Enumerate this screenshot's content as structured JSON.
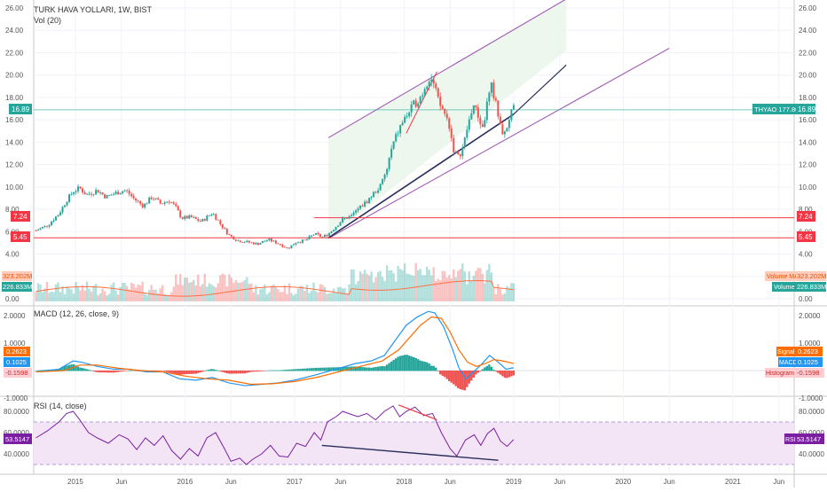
{
  "header": {
    "symbol_title": "TURK HAVA YOLLARI, 1W, BIST",
    "vol_label": "Vol (20)",
    "macd_label": "MACD (12, 26, close, 9)",
    "rsi_label": "RSI (14, close)"
  },
  "colors": {
    "up": "#26a69a",
    "down": "#ef5350",
    "channel": "#9c4fb0",
    "trendline": "#2a2e5c",
    "hline": "#f23645",
    "macd": "#2196f3",
    "signal": "#ff6d00",
    "rsi": "#7b1fa2",
    "price_line": "#26a69a"
  },
  "badges": {
    "price_left": "16.89",
    "price_right_name": "THYAO 177.80%",
    "price_right_value": "16.89",
    "h1_left": "7.24",
    "h1_right": "7.24",
    "h2_left": "5.45",
    "h2_right": "5.45",
    "vol_ma_left": "323.202M",
    "vol_ma_name": "Volume MA",
    "vol_ma_value": "323.202M",
    "vol_left": "226.833M",
    "vol_name": "Volume",
    "vol_value": "226.833M",
    "signal_left": "0.2623",
    "signal_name": "Signal",
    "signal_value": "0.2623",
    "macd_left": "0.1025",
    "macd_name": "MACD",
    "macd_value": "0.1025",
    "hist_left": "-0.1598",
    "hist_name": "Histogram",
    "hist_value": "-0.1598",
    "rsi_left": "53.5147",
    "rsi_name": "RSI",
    "rsi_value": "53.5147"
  },
  "chart_data": [
    {
      "type": "candlestick",
      "title": "TURK HAVA YOLLARI, 1W, BIST",
      "ylim": [
        0,
        27
      ],
      "y_ticks": [
        "26.00",
        "24.00",
        "22.00",
        "20.00",
        "18.00",
        "16.00",
        "14.00",
        "12.00",
        "10.00",
        "8.00",
        "6.00",
        "4.00",
        "2.00",
        "0.00"
      ],
      "x_ticks": [
        "2015",
        "Jun",
        "2016",
        "Jun",
        "2017",
        "Jun",
        "2018",
        "Jun",
        "2019",
        "Jun",
        "2020",
        "Jun",
        "2021",
        "Jun"
      ],
      "x_tick_dates": [
        2015.0,
        2015.42,
        2016.0,
        2016.42,
        2017.0,
        2017.42,
        2018.0,
        2018.42,
        2019.0,
        2019.42,
        2020.0,
        2020.42,
        2021.0,
        2021.42
      ],
      "x_range": [
        2014.62,
        2021.56
      ],
      "close_path": [
        [
          2014.64,
          6.1
        ],
        [
          2014.75,
          6.6
        ],
        [
          2014.85,
          7.6
        ],
        [
          2014.92,
          8.8
        ],
        [
          2014.98,
          9.6
        ],
        [
          2015.04,
          9.9
        ],
        [
          2015.1,
          9.3
        ],
        [
          2015.2,
          9.7
        ],
        [
          2015.28,
          9.1
        ],
        [
          2015.38,
          9.5
        ],
        [
          2015.46,
          9.7
        ],
        [
          2015.54,
          8.9
        ],
        [
          2015.62,
          8.3
        ],
        [
          2015.7,
          9.1
        ],
        [
          2015.78,
          8.5
        ],
        [
          2015.86,
          8.8
        ],
        [
          2015.92,
          8.1
        ],
        [
          2015.97,
          7.2
        ],
        [
          2016.05,
          7.3
        ],
        [
          2016.15,
          6.9
        ],
        [
          2016.25,
          7.7
        ],
        [
          2016.33,
          6.6
        ],
        [
          2016.4,
          5.7
        ],
        [
          2016.48,
          5.2
        ],
        [
          2016.56,
          5.1
        ],
        [
          2016.66,
          4.9
        ],
        [
          2016.76,
          5.3
        ],
        [
          2016.86,
          4.9
        ],
        [
          2016.94,
          4.5
        ],
        [
          2017.02,
          5.1
        ],
        [
          2017.1,
          5.2
        ],
        [
          2017.18,
          5.8
        ],
        [
          2017.26,
          5.5
        ],
        [
          2017.32,
          5.9
        ],
        [
          2017.38,
          6.5
        ],
        [
          2017.44,
          7.1
        ],
        [
          2017.52,
          7.4
        ],
        [
          2017.6,
          8.2
        ],
        [
          2017.66,
          8.7
        ],
        [
          2017.72,
          9.4
        ],
        [
          2017.78,
          10.0
        ],
        [
          2017.84,
          11.4
        ],
        [
          2017.88,
          13.2
        ],
        [
          2017.93,
          14.6
        ],
        [
          2017.98,
          15.7
        ],
        [
          2018.04,
          16.6
        ],
        [
          2018.1,
          17.5
        ],
        [
          2018.16,
          18.2
        ],
        [
          2018.2,
          19.3
        ],
        [
          2018.24,
          19.9
        ],
        [
          2018.28,
          18.8
        ],
        [
          2018.32,
          17.4
        ],
        [
          2018.36,
          16.8
        ],
        [
          2018.41,
          15.6
        ],
        [
          2018.45,
          13.4
        ],
        [
          2018.49,
          12.6
        ],
        [
          2018.54,
          13.6
        ],
        [
          2018.58,
          15.4
        ],
        [
          2018.63,
          17.4
        ],
        [
          2018.68,
          16.2
        ],
        [
          2018.72,
          15.2
        ],
        [
          2018.76,
          17.6
        ],
        [
          2018.8,
          19.0
        ],
        [
          2018.84,
          17.3
        ],
        [
          2018.88,
          15.2
        ],
        [
          2018.92,
          14.7
        ],
        [
          2018.96,
          16.2
        ],
        [
          2019.0,
          16.9
        ]
      ],
      "channel": {
        "upper": [
          [
            2017.31,
            14.4
          ],
          [
            2019.48,
            26.8
          ]
        ],
        "lower": [
          [
            2017.31,
            5.4
          ],
          [
            2020.42,
            18.9
          ]
        ],
        "upper2": [
          [
            2019.48,
            26.8
          ],
          [
            2020.42,
            22.4
          ]
        ]
      },
      "trendline": [
        [
          2017.31,
          5.45
        ],
        [
          2019.0,
          16.5
        ]
      ],
      "top_line": [
        [
          2018.02,
          14.8
        ],
        [
          2018.3,
          20.3
        ]
      ],
      "horizontal_lines": [
        7.24,
        5.45
      ],
      "last_price": 16.89
    },
    {
      "type": "bar",
      "title": "Vol (20)",
      "values_millions": [],
      "last_value": "226.833M",
      "ma_value": "323.202M"
    },
    {
      "type": "line",
      "title": "MACD (12, 26, close, 9)",
      "ylim": [
        -1.2,
        2.4
      ],
      "y_ticks": [
        "2.0000",
        "1.0000",
        "0.0000",
        "-1.0000"
      ],
      "macd_path": [
        [
          2014.64,
          -0.05
        ],
        [
          2014.85,
          0.05
        ],
        [
          2014.98,
          0.35
        ],
        [
          2015.06,
          0.3
        ],
        [
          2015.2,
          0.15
        ],
        [
          2015.35,
          0.05
        ],
        [
          2015.5,
          0.05
        ],
        [
          2015.65,
          -0.05
        ],
        [
          2015.8,
          -0.05
        ],
        [
          2015.95,
          -0.3
        ],
        [
          2016.1,
          -0.35
        ],
        [
          2016.25,
          -0.25
        ],
        [
          2016.4,
          -0.45
        ],
        [
          2016.55,
          -0.55
        ],
        [
          2016.7,
          -0.5
        ],
        [
          2016.85,
          -0.45
        ],
        [
          2017.0,
          -0.35
        ],
        [
          2017.2,
          -0.15
        ],
        [
          2017.38,
          0.05
        ],
        [
          2017.55,
          0.25
        ],
        [
          2017.7,
          0.35
        ],
        [
          2017.82,
          0.55
        ],
        [
          2017.92,
          1.1
        ],
        [
          2018.02,
          1.65
        ],
        [
          2018.12,
          1.95
        ],
        [
          2018.22,
          2.15
        ],
        [
          2018.28,
          2.1
        ],
        [
          2018.36,
          1.6
        ],
        [
          2018.44,
          0.8
        ],
        [
          2018.5,
          0.1
        ],
        [
          2018.56,
          -0.3
        ],
        [
          2018.62,
          -0.1
        ],
        [
          2018.7,
          0.2
        ],
        [
          2018.78,
          0.55
        ],
        [
          2018.86,
          0.3
        ],
        [
          2018.93,
          0.05
        ],
        [
          2019.0,
          0.1
        ]
      ],
      "signal_path": [
        [
          2014.64,
          -0.05
        ],
        [
          2014.9,
          0.0
        ],
        [
          2015.04,
          0.2
        ],
        [
          2015.2,
          0.2
        ],
        [
          2015.4,
          0.08
        ],
        [
          2015.6,
          0.0
        ],
        [
          2015.8,
          -0.05
        ],
        [
          2016.0,
          -0.2
        ],
        [
          2016.2,
          -0.3
        ],
        [
          2016.4,
          -0.35
        ],
        [
          2016.6,
          -0.5
        ],
        [
          2016.8,
          -0.48
        ],
        [
          2017.0,
          -0.4
        ],
        [
          2017.2,
          -0.25
        ],
        [
          2017.4,
          -0.05
        ],
        [
          2017.6,
          0.15
        ],
        [
          2017.8,
          0.35
        ],
        [
          2017.95,
          0.75
        ],
        [
          2018.05,
          1.2
        ],
        [
          2018.15,
          1.65
        ],
        [
          2018.25,
          1.95
        ],
        [
          2018.34,
          1.9
        ],
        [
          2018.42,
          1.4
        ],
        [
          2018.5,
          0.75
        ],
        [
          2018.58,
          0.3
        ],
        [
          2018.66,
          0.15
        ],
        [
          2018.74,
          0.25
        ],
        [
          2018.82,
          0.4
        ],
        [
          2018.9,
          0.35
        ],
        [
          2019.0,
          0.26
        ]
      ],
      "last_macd": 0.1025,
      "last_signal": 0.2623,
      "last_histogram": -0.1598
    },
    {
      "type": "line",
      "title": "RSI (14, close)",
      "ylim": [
        25,
        90
      ],
      "y_ticks": [
        "80.0000",
        "60.0000",
        "40.0000"
      ],
      "band": [
        30,
        70
      ],
      "rsi_path": [
        [
          2014.64,
          55
        ],
        [
          2014.75,
          62
        ],
        [
          2014.85,
          70
        ],
        [
          2014.92,
          78
        ],
        [
          2014.98,
          80
        ],
        [
          2015.04,
          72
        ],
        [
          2015.12,
          60
        ],
        [
          2015.2,
          55
        ],
        [
          2015.3,
          50
        ],
        [
          2015.4,
          58
        ],
        [
          2015.48,
          54
        ],
        [
          2015.56,
          44
        ],
        [
          2015.64,
          55
        ],
        [
          2015.72,
          48
        ],
        [
          2015.8,
          57
        ],
        [
          2015.88,
          43
        ],
        [
          2015.96,
          35
        ],
        [
          2016.04,
          45
        ],
        [
          2016.12,
          38
        ],
        [
          2016.2,
          55
        ],
        [
          2016.28,
          60
        ],
        [
          2016.36,
          45
        ],
        [
          2016.42,
          33
        ],
        [
          2016.5,
          36
        ],
        [
          2016.56,
          30
        ],
        [
          2016.62,
          35
        ],
        [
          2016.7,
          40
        ],
        [
          2016.78,
          48
        ],
        [
          2016.86,
          38
        ],
        [
          2016.94,
          37
        ],
        [
          2017.02,
          50
        ],
        [
          2017.1,
          47
        ],
        [
          2017.18,
          60
        ],
        [
          2017.24,
          53
        ],
        [
          2017.3,
          70
        ],
        [
          2017.38,
          75
        ],
        [
          2017.44,
          80
        ],
        [
          2017.52,
          77
        ],
        [
          2017.58,
          75
        ],
        [
          2017.66,
          78
        ],
        [
          2017.74,
          72
        ],
        [
          2017.82,
          80
        ],
        [
          2017.9,
          85
        ],
        [
          2017.96,
          75
        ],
        [
          2018.02,
          80
        ],
        [
          2018.1,
          84
        ],
        [
          2018.18,
          76
        ],
        [
          2018.26,
          78
        ],
        [
          2018.34,
          60
        ],
        [
          2018.42,
          45
        ],
        [
          2018.48,
          38
        ],
        [
          2018.56,
          53
        ],
        [
          2018.64,
          58
        ],
        [
          2018.7,
          48
        ],
        [
          2018.76,
          59
        ],
        [
          2018.82,
          64
        ],
        [
          2018.88,
          52
        ],
        [
          2018.94,
          47
        ],
        [
          2019.0,
          53.5
        ]
      ],
      "divergence_top": [
        [
          2017.95,
          86
        ],
        [
          2018.3,
          72
        ]
      ],
      "divergence_bottom": [
        [
          2017.25,
          48
        ],
        [
          2018.86,
          34
        ]
      ],
      "last_value": 53.5147
    }
  ]
}
